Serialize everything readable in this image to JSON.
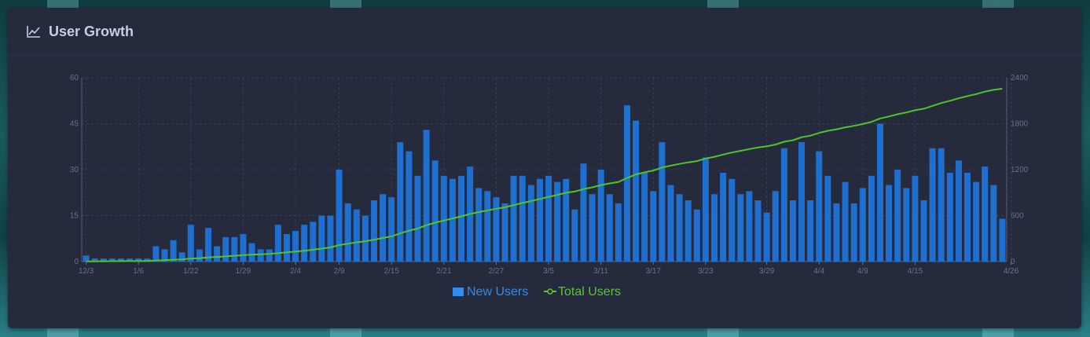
{
  "card": {
    "title": "User Growth",
    "icon": "line-chart-icon"
  },
  "colors": {
    "new_users": "#1f6fd0",
    "total_users": "#4fc628",
    "grid": "#3a3f56",
    "axis_text": "#6b7088",
    "legend_new": "#2f8df0",
    "legend_total": "#57c72d"
  },
  "chart_data": {
    "type": "bar",
    "title": "User Growth",
    "x_tick_labels": [
      "12/3",
      "1/6",
      "1/22",
      "1/29",
      "2/4",
      "2/9",
      "2/15",
      "2/21",
      "2/27",
      "3/5",
      "3/11",
      "3/17",
      "3/23",
      "3/29",
      "4/4",
      "4/9",
      "4/15",
      "4/26"
    ],
    "x_tick_indices": [
      0,
      6,
      12,
      18,
      24,
      29,
      35,
      41,
      47,
      53,
      59,
      65,
      71,
      78,
      84,
      89,
      95,
      106
    ],
    "y_left": {
      "ticks": [
        0,
        15,
        30,
        45,
        60
      ],
      "ylim": [
        0,
        60
      ]
    },
    "y_right": {
      "ticks": [
        0,
        600,
        1200,
        1800,
        2400
      ],
      "ylim": [
        0,
        2400
      ]
    },
    "grid": true,
    "legend_position": "bottom-center",
    "series": [
      {
        "name": "New Users",
        "type": "bar",
        "axis": "left",
        "values": [
          2,
          1,
          1,
          1,
          1,
          1,
          1,
          1,
          5,
          4,
          7,
          3,
          12,
          4,
          11,
          5,
          8,
          8,
          9,
          6,
          4,
          4,
          12,
          9,
          10,
          12,
          13,
          15,
          15,
          30,
          19,
          17,
          15,
          20,
          22,
          21,
          39,
          36,
          28,
          43,
          33,
          28,
          27,
          28,
          31,
          24,
          23,
          21,
          19,
          28,
          28,
          25,
          27,
          28,
          26,
          27,
          17,
          32,
          22,
          30,
          22,
          19,
          51,
          46,
          29,
          23,
          39,
          25,
          22,
          20,
          17,
          34,
          22,
          29,
          27,
          22,
          23,
          20,
          16,
          23,
          37,
          20,
          39,
          20,
          36,
          28,
          19,
          26,
          19,
          24,
          28,
          45,
          25,
          30,
          24,
          28,
          20,
          37,
          37,
          29,
          33,
          29,
          26,
          31,
          25,
          14
        ]
      },
      {
        "name": "Total Users",
        "type": "line",
        "axis": "right",
        "values": [
          2,
          3,
          4,
          5,
          6,
          7,
          8,
          9,
          14,
          18,
          25,
          28,
          40,
          44,
          55,
          60,
          68,
          76,
          85,
          91,
          95,
          99,
          111,
          120,
          130,
          142,
          155,
          170,
          185,
          215,
          234,
          251,
          266,
          286,
          308,
          329,
          368,
          404,
          432,
          475,
          508,
          536,
          563,
          591,
          622,
          646,
          669,
          690,
          709,
          737,
          765,
          790,
          817,
          845,
          871,
          898,
          915,
          947,
          969,
          999,
          1021,
          1040,
          1091,
          1137,
          1166,
          1189,
          1228,
          1253,
          1275,
          1295,
          1312,
          1346,
          1368,
          1397,
          1424,
          1446,
          1469,
          1489,
          1505,
          1528,
          1565,
          1585,
          1624,
          1644,
          1680,
          1708,
          1727,
          1753,
          1772,
          1796,
          1824,
          1869,
          1894,
          1924,
          1948,
          1976,
          1996,
          2033,
          2070,
          2099,
          2132,
          2161,
          2187,
          2218,
          2243,
          2257
        ]
      }
    ]
  }
}
